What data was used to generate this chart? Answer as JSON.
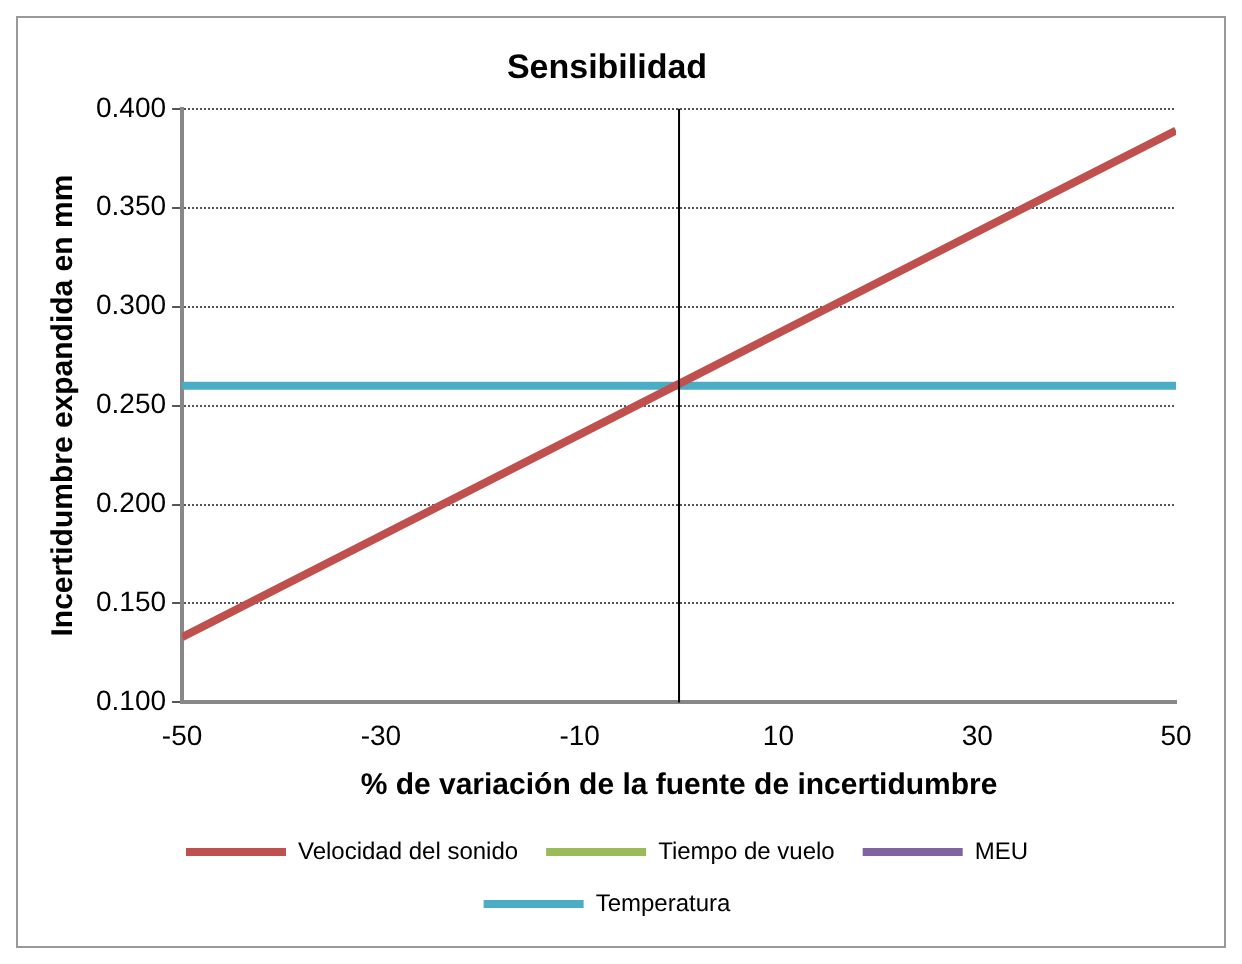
{
  "chart_data": {
    "type": "line",
    "title": "Sensibilidad",
    "xlabel": "% de variación de la fuente de incertidumbre",
    "ylabel": "Incertidumbre expandida en mm",
    "x": [
      -50,
      0,
      50
    ],
    "series": [
      {
        "name": "Velocidad del sonido",
        "color": "#c0504d",
        "values": [
          0.133,
          0.261,
          0.389
        ]
      },
      {
        "name": "Tiempo de vuelo",
        "color": "#9bbb59",
        "values": [
          null,
          null,
          null
        ]
      },
      {
        "name": "MEU",
        "color": "#8064a2",
        "values": [
          null,
          null,
          null
        ]
      },
      {
        "name": "Temperatura",
        "color": "#4bacc6",
        "values": [
          0.26,
          0.26,
          0.26
        ]
      }
    ],
    "xlim": [
      -50,
      50
    ],
    "xticks": [
      -50,
      -30,
      -10,
      10,
      30,
      50
    ],
    "ylim": [
      0.1,
      0.4
    ],
    "yticks": [
      {
        "value": 0.1,
        "label": "0.100"
      },
      {
        "value": 0.15,
        "label": "0.150"
      },
      {
        "value": 0.2,
        "label": "0.200"
      },
      {
        "value": 0.25,
        "label": "0.250"
      },
      {
        "value": 0.3,
        "label": "0.300"
      },
      {
        "value": 0.35,
        "label": "0.350"
      },
      {
        "value": 0.4,
        "label": "0.400"
      }
    ],
    "ref_lines": [
      {
        "axis": "x",
        "value": 0,
        "color": "#000000"
      }
    ],
    "grid": "y",
    "legend": "bottom",
    "marker": "none",
    "line_style": "solid"
  }
}
